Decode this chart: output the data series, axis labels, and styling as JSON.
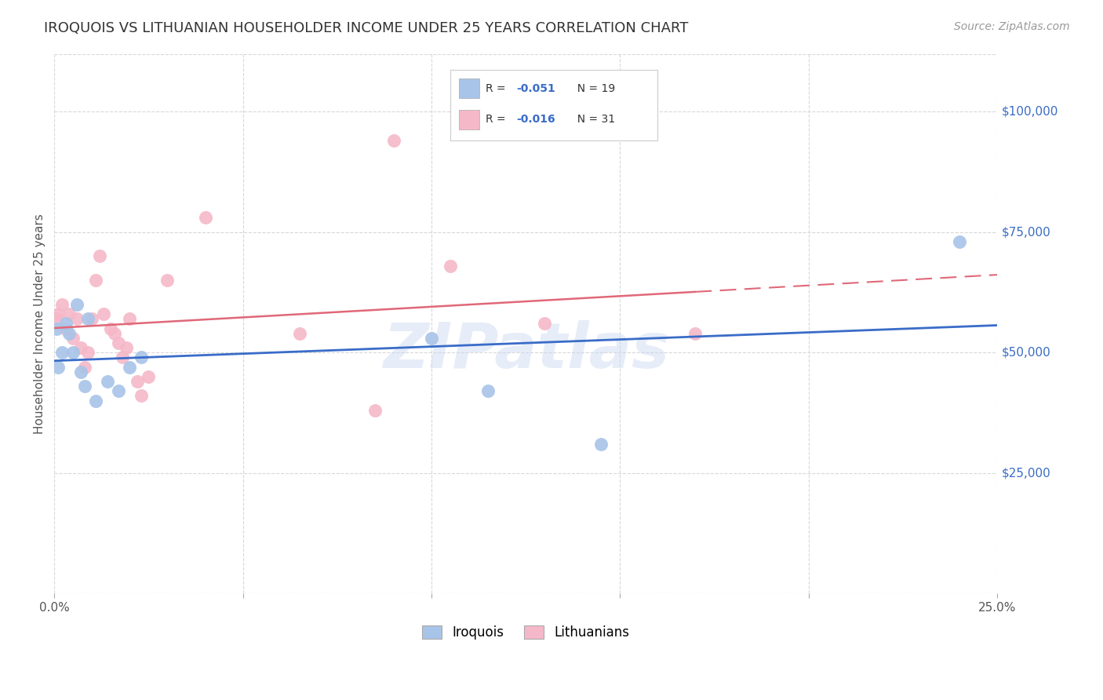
{
  "title": "IROQUOIS VS LITHUANIAN HOUSEHOLDER INCOME UNDER 25 YEARS CORRELATION CHART",
  "source": "Source: ZipAtlas.com",
  "ylabel": "Householder Income Under 25 years",
  "ytick_labels": [
    "$25,000",
    "$50,000",
    "$75,000",
    "$100,000"
  ],
  "ytick_values": [
    25000,
    50000,
    75000,
    100000
  ],
  "xlim": [
    0.0,
    0.25
  ],
  "ylim": [
    0,
    112000
  ],
  "watermark": "ZIPatlas",
  "iroquois_color": "#a8c4e8",
  "lithuanian_color": "#f5b8c8",
  "iroquois_line_color": "#3a6cc8",
  "lithuanian_line_color": "#e06878",
  "iroquois_x": [
    0.0005,
    0.001,
    0.002,
    0.003,
    0.004,
    0.005,
    0.006,
    0.007,
    0.008,
    0.009,
    0.011,
    0.014,
    0.017,
    0.02,
    0.023,
    0.1,
    0.115,
    0.145,
    0.24
  ],
  "iroquois_y": [
    55000,
    47000,
    50000,
    56000,
    54000,
    50000,
    60000,
    46000,
    43000,
    57000,
    40000,
    44000,
    42000,
    47000,
    49000,
    53000,
    42000,
    31000,
    73000
  ],
  "lithuanian_x": [
    0.0005,
    0.001,
    0.002,
    0.003,
    0.004,
    0.005,
    0.006,
    0.007,
    0.008,
    0.009,
    0.01,
    0.011,
    0.012,
    0.013,
    0.015,
    0.016,
    0.017,
    0.018,
    0.019,
    0.02,
    0.022,
    0.023,
    0.025,
    0.03,
    0.04,
    0.065,
    0.085,
    0.09,
    0.105,
    0.13,
    0.17
  ],
  "lithuanian_y": [
    57000,
    58000,
    60000,
    55000,
    58000,
    53000,
    57000,
    51000,
    47000,
    50000,
    57000,
    65000,
    70000,
    58000,
    55000,
    54000,
    52000,
    49000,
    51000,
    57000,
    44000,
    41000,
    45000,
    65000,
    78000,
    54000,
    38000,
    94000,
    68000,
    56000,
    54000
  ],
  "background_color": "#ffffff",
  "grid_color": "#d8d8d8",
  "title_fontsize": 13,
  "axis_label_fontsize": 11,
  "tick_fontsize": 11,
  "source_fontsize": 10
}
